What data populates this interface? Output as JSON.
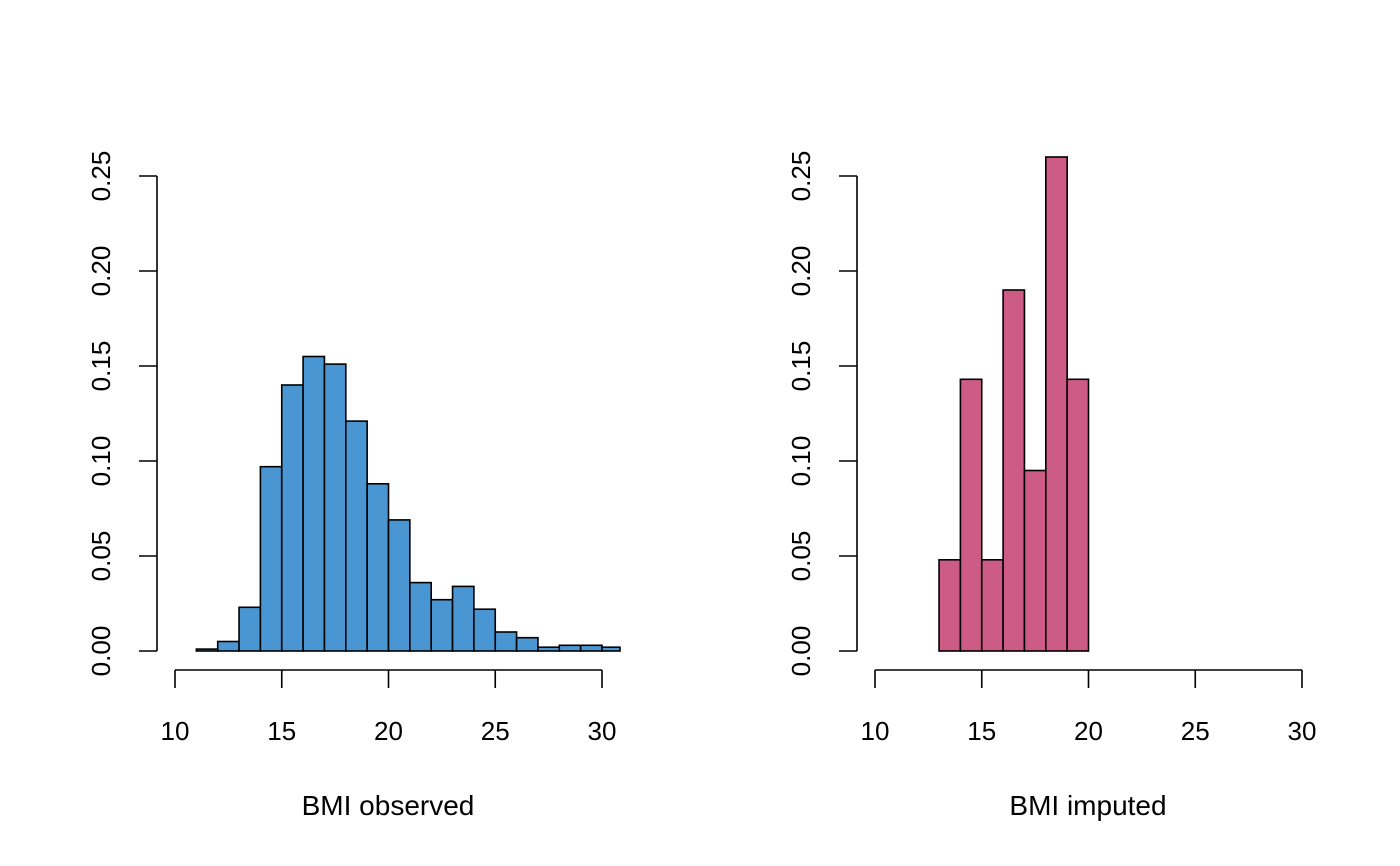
{
  "chart_data": [
    {
      "type": "bar",
      "xlabel": "BMI observed",
      "ylabel": "",
      "title": "",
      "color": "#4a96d2",
      "bin_width": 1,
      "bin_starts": [
        11,
        12,
        13,
        14,
        15,
        16,
        17,
        18,
        19,
        20,
        21,
        22,
        23,
        24,
        25,
        26,
        27,
        28,
        29,
        30
      ],
      "values": [
        0.001,
        0.005,
        0.023,
        0.097,
        0.14,
        0.155,
        0.151,
        0.121,
        0.088,
        0.069,
        0.036,
        0.027,
        0.034,
        0.022,
        0.01,
        0.007,
        0.002,
        0.003,
        0.003,
        0.002
      ],
      "xlim": [
        10,
        30
      ],
      "ylim": [
        0,
        0.25
      ],
      "x_ticks": [
        "10",
        "15",
        "20",
        "25",
        "30"
      ],
      "y_ticks": [
        "0.00",
        "0.05",
        "0.10",
        "0.15",
        "0.20",
        "0.25"
      ],
      "grid": false,
      "legend": "none"
    },
    {
      "type": "bar",
      "xlabel": "BMI imputed",
      "ylabel": "",
      "title": "",
      "color": "#cc5c85",
      "bin_width": 1,
      "bin_starts": [
        13,
        14,
        15,
        16,
        17,
        18,
        19
      ],
      "values": [
        0.048,
        0.143,
        0.048,
        0.19,
        0.095,
        0.26,
        0.143
      ],
      "xlim": [
        10,
        30
      ],
      "ylim": [
        0,
        0.25
      ],
      "x_ticks": [
        "10",
        "15",
        "20",
        "25",
        "30"
      ],
      "y_ticks": [
        "0.00",
        "0.05",
        "0.10",
        "0.15",
        "0.20",
        "0.25"
      ],
      "grid": false,
      "legend": "none"
    }
  ]
}
